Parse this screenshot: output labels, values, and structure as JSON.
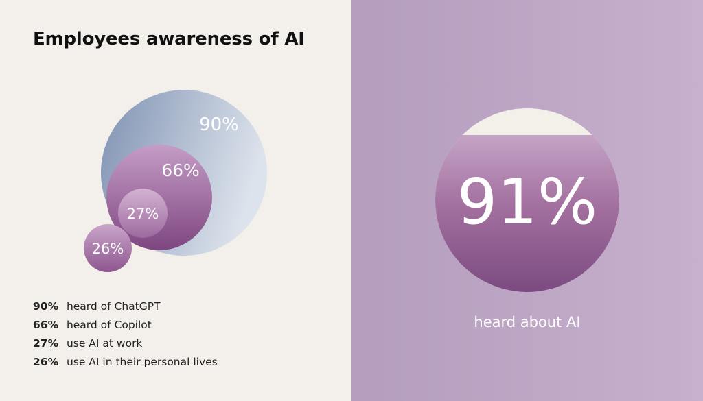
{
  "title": "Employees awareness of AI",
  "chart_data": [
    {
      "type": "bubble",
      "bubbles": [
        {
          "value": 90,
          "label": "90%",
          "description": "heard of ChatGPT"
        },
        {
          "value": 66,
          "label": "66%",
          "description": "heard of Copilot"
        },
        {
          "value": 27,
          "label": "27%",
          "description": "use AI at work"
        },
        {
          "value": 26,
          "label": "26%",
          "description": "use AI in their personal lives"
        }
      ]
    },
    {
      "type": "pie",
      "value": 91,
      "label": "91%",
      "caption": "heard about AI"
    }
  ],
  "colors": {
    "left_background": "#f3f0eb",
    "right_background": "#bca6c5",
    "blue_grey": "#8395b3",
    "purple_dark": "#7e4880",
    "purple_light": "#c7a6c8"
  }
}
